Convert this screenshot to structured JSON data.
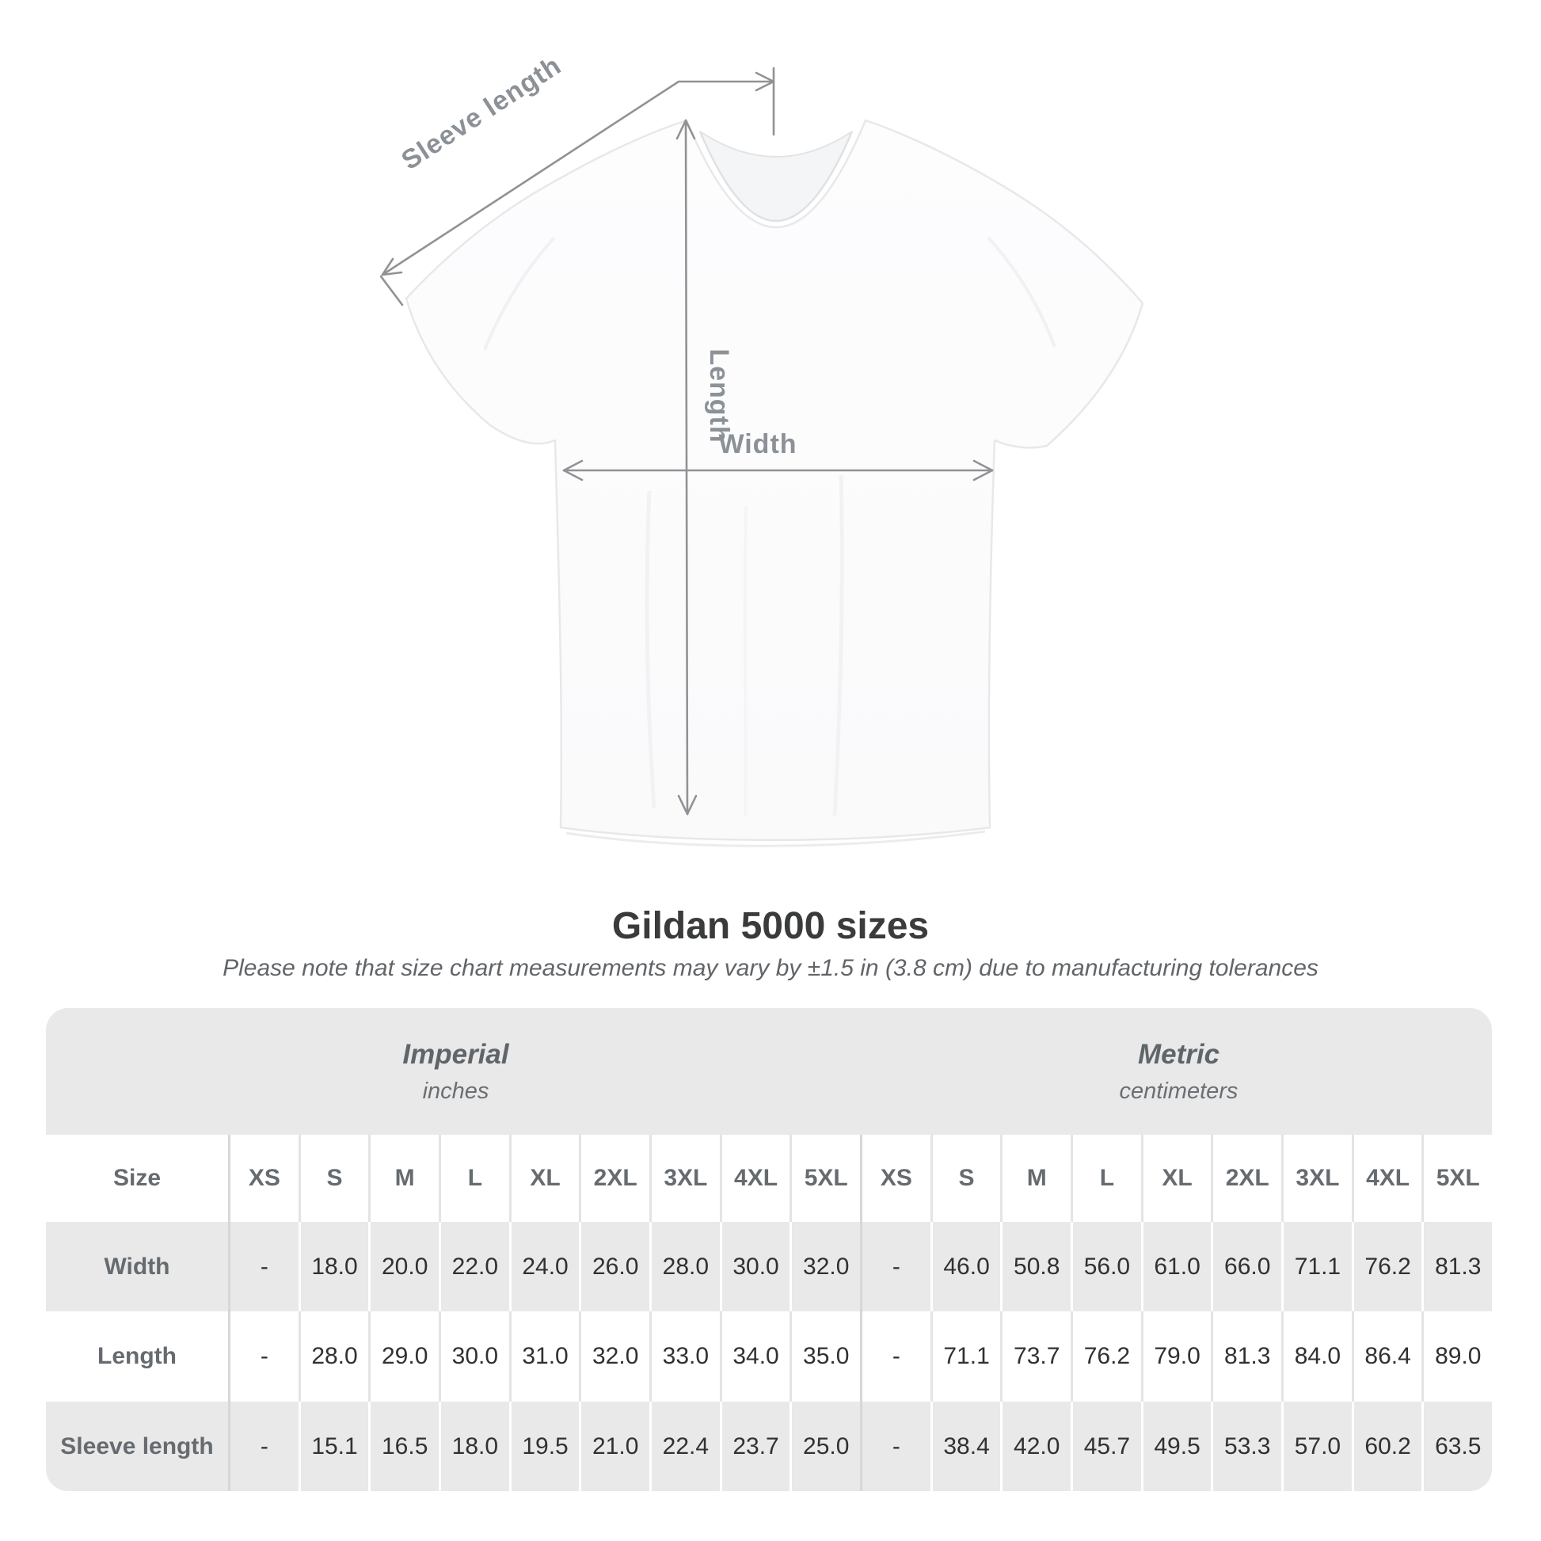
{
  "diagram": {
    "labels": {
      "sleeve": "Sleeve length",
      "length": "Length",
      "width": "Width"
    },
    "line_color": "#909295",
    "label_color": "#8b9196"
  },
  "heading": {
    "title": "Gildan 5000 sizes",
    "subtitle": "Please note that size chart measurements may vary by ±1.5 in (3.8 cm) due to manufacturing tolerances"
  },
  "table": {
    "groups": [
      {
        "label": "Imperial",
        "sublabel": "inches"
      },
      {
        "label": "Metric",
        "sublabel": "centimeters"
      }
    ],
    "size_header": "Size",
    "sizes": [
      "XS",
      "S",
      "M",
      "L",
      "XL",
      "2XL",
      "3XL",
      "4XL",
      "5XL"
    ],
    "rows": [
      {
        "label": "Width",
        "imperial": [
          "-",
          "18.0",
          "20.0",
          "22.0",
          "24.0",
          "26.0",
          "28.0",
          "30.0",
          "32.0"
        ],
        "metric": [
          "-",
          "46.0",
          "50.8",
          "56.0",
          "61.0",
          "66.0",
          "71.1",
          "76.2",
          "81.3"
        ]
      },
      {
        "label": "Length",
        "imperial": [
          "-",
          "28.0",
          "29.0",
          "30.0",
          "31.0",
          "32.0",
          "33.0",
          "34.0",
          "35.0"
        ],
        "metric": [
          "-",
          "71.1",
          "73.7",
          "76.2",
          "79.0",
          "81.3",
          "84.0",
          "86.4",
          "89.0"
        ]
      },
      {
        "label": "Sleeve length",
        "imperial": [
          "-",
          "15.1",
          "16.5",
          "18.0",
          "19.5",
          "21.0",
          "22.4",
          "23.7",
          "25.0"
        ],
        "metric": [
          "-",
          "38.4",
          "42.0",
          "45.7",
          "49.5",
          "53.3",
          "57.0",
          "60.2",
          "63.5"
        ]
      }
    ],
    "colors": {
      "stripe": "#e9e9e9",
      "band": "#e9e9e9",
      "separator_light": "#e4e4e4",
      "separator_boundary": "#d6d7d8",
      "header_text": "#666b70",
      "value_text": "#2f3133"
    }
  }
}
